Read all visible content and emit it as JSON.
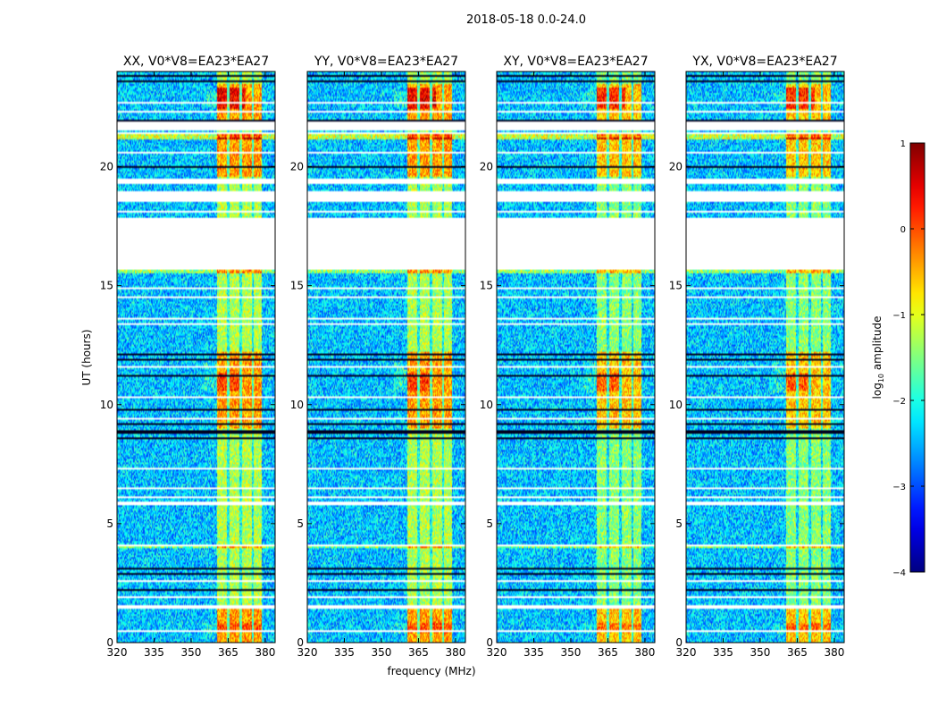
{
  "chart_data": {
    "type": "heatmap",
    "suptitle": "2018-05-18 0.0-24.0",
    "xlabel": "frequency (MHz)",
    "ylabel": "UT (hours)",
    "xlim": [
      320,
      384
    ],
    "ylim": [
      0,
      24
    ],
    "xticks": [
      320,
      335,
      350,
      365,
      380
    ],
    "yticks": [
      0,
      5,
      10,
      15,
      20
    ],
    "panels": [
      {
        "title": "XX, V0*V8=EA23*EA27",
        "pol": "XX"
      },
      {
        "title": "YY, V0*V8=EA23*EA27",
        "pol": "YY"
      },
      {
        "title": "XY, V0*V8=EA23*EA27",
        "pol": "XY"
      },
      {
        "title": "YX, V0*V8=EA23*EA27",
        "pol": "YX"
      }
    ],
    "rfi_band_mhz": [
      360.5,
      378.5
    ],
    "rfi_subbands_mhz": [
      [
        360.5,
        364.5
      ],
      [
        365.5,
        369.5
      ],
      [
        370.5,
        374.5
      ],
      [
        375.5,
        378.5
      ]
    ],
    "bright_periods_ut": [
      [
        0,
        1.4
      ],
      [
        9,
        12.2
      ],
      [
        19.6,
        21.2
      ],
      [
        22.0,
        23.5
      ]
    ],
    "flagged_gaps_ut": [
      [
        15.65,
        17.85
      ],
      [
        18.5,
        18.95
      ],
      [
        19.3,
        19.5
      ],
      [
        21.5,
        21.9
      ],
      [
        1.45,
        1.6
      ],
      [
        5.8,
        5.9
      ],
      [
        6.05,
        6.15
      ],
      [
        6.45,
        6.52
      ]
    ],
    "colorbar": {
      "label": "log10 amplitude",
      "label_main": "log",
      "label_sub": "10",
      "label_tail": " amplitude",
      "range": [
        -4,
        1
      ],
      "ticks": [
        "1",
        "0",
        "−1",
        "−2",
        "−3",
        "−4"
      ],
      "colormap": "jet"
    }
  }
}
